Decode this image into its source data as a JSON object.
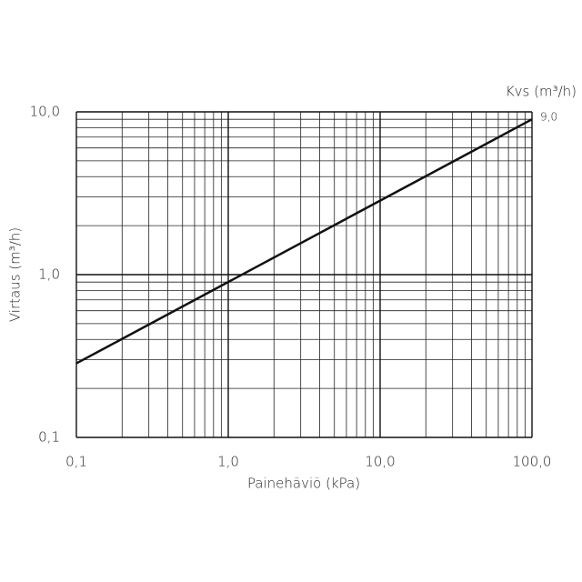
{
  "chart_data": {
    "type": "line",
    "log_x": true,
    "log_y": true,
    "grid": true,
    "xlabel": "Painehäviö (kPa)",
    "ylabel": "Virtaus (m³/h)",
    "legend_title": "Kvs (m³/h)",
    "xlim": [
      0.1,
      100
    ],
    "ylim": [
      0.1,
      10
    ],
    "xticks": [
      {
        "value": 0.1,
        "label": "0,1"
      },
      {
        "value": 1,
        "label": "1,0"
      },
      {
        "value": 10,
        "label": "10,0"
      },
      {
        "value": 100,
        "label": "100,0"
      }
    ],
    "yticks": [
      {
        "value": 0.1,
        "label": "0,1"
      },
      {
        "value": 1,
        "label": "1,0"
      },
      {
        "value": 10,
        "label": "10,0"
      }
    ],
    "xminorticks": [
      0.2,
      0.3,
      0.4,
      0.5,
      0.6,
      0.7,
      0.8,
      0.9,
      2,
      3,
      4,
      5,
      6,
      7,
      8,
      9,
      20,
      30,
      40,
      50,
      60,
      70,
      80,
      90
    ],
    "yminorticks": [
      0.2,
      0.3,
      0.4,
      0.5,
      0.6,
      0.7,
      0.8,
      0.9,
      2,
      3,
      4,
      5,
      6,
      7,
      8,
      9
    ],
    "x": [
      0.1,
      100
    ],
    "series": [
      {
        "name": "9,0",
        "color": "#111111",
        "values": [
          0.285,
          9.0
        ]
      }
    ]
  }
}
